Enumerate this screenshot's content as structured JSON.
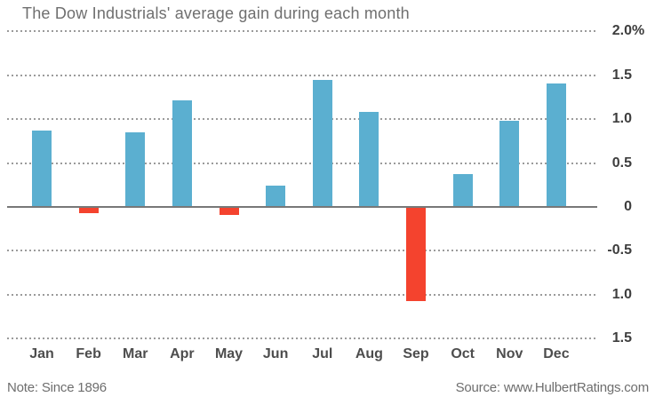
{
  "chart_data": {
    "type": "bar",
    "title": "The Dow Industrials' average gain during each month",
    "categories": [
      "Jan",
      "Feb",
      "Mar",
      "Apr",
      "May",
      "Jun",
      "Jul",
      "Aug",
      "Sep",
      "Oct",
      "Nov",
      "Dec"
    ],
    "values": [
      0.87,
      -0.06,
      0.85,
      1.21,
      -0.08,
      0.24,
      1.45,
      1.08,
      -1.06,
      0.37,
      0.98,
      1.41
    ],
    "unit": "%",
    "ylabel": "",
    "xlabel": "",
    "ylim": [
      -1.5,
      2.0
    ],
    "grid": "horizontal-dotted",
    "legend": "none",
    "y_ticks": [
      {
        "value": 2.0,
        "label": "2.0%"
      },
      {
        "value": 1.5,
        "label": "1.5"
      },
      {
        "value": 1.0,
        "label": "1.0"
      },
      {
        "value": 0.5,
        "label": "0.5"
      },
      {
        "value": 0,
        "label": "0"
      },
      {
        "value": -0.5,
        "label": "-0.5"
      },
      {
        "value": -1.0,
        "label": "1.0"
      },
      {
        "value": -1.5,
        "label": "1.5"
      }
    ],
    "colors": {
      "positive": "#5bafd0",
      "negative": "#f4432e",
      "gridline": "#9b9b9b",
      "zero_axis": "#787878",
      "title_text": "#6f6f6f",
      "tick_text": "#3e3e3e"
    },
    "note": "Note: Since 1896",
    "source": "Source: www.HulbertRatings.com"
  }
}
